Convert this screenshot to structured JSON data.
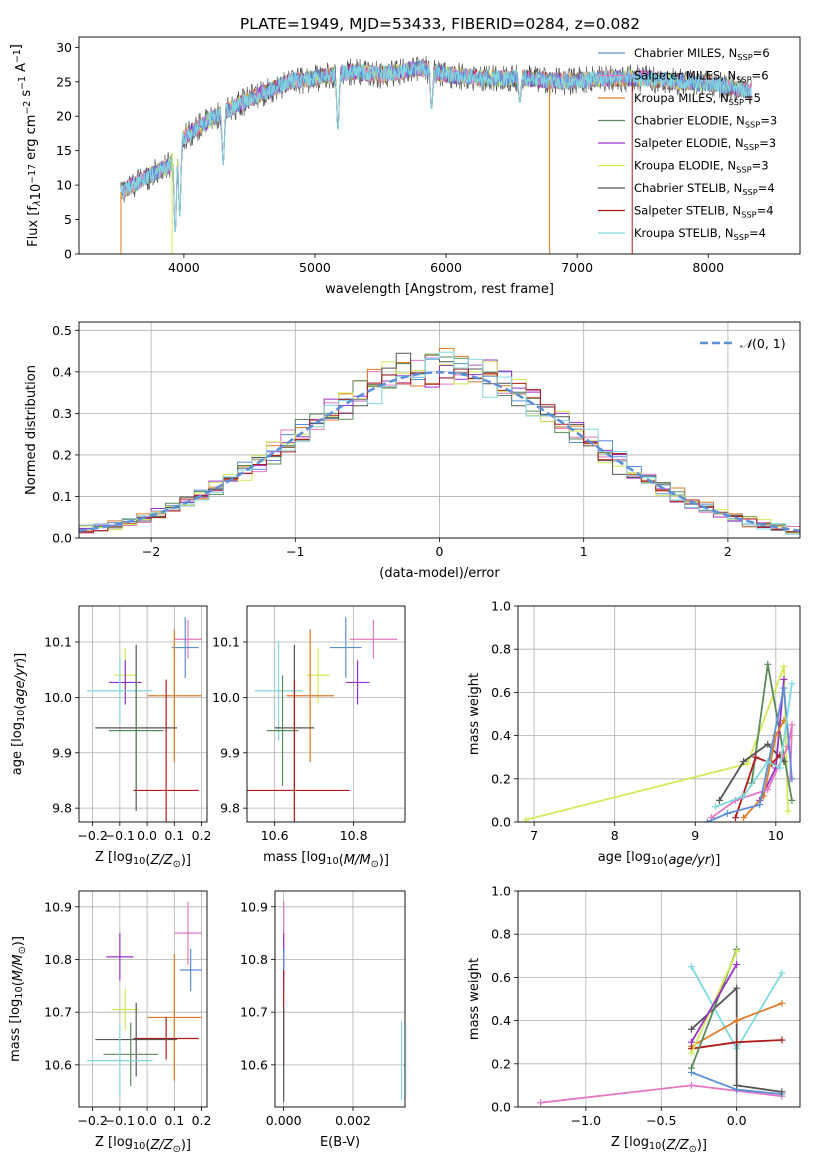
{
  "figure": {
    "title": "PLATE=1949, MJD=53433, FIBERID=0284, z=0.082"
  },
  "colors": {
    "chabrier_miles": "#5b8fd8",
    "salpeter_miles": "#e377c2",
    "kroupa_miles": "#e07b28",
    "chabrier_elodie": "#5a8a5a",
    "salpeter_elodie": "#9b30c9",
    "kroupa_elodie": "#d4e85a",
    "chabrier_stelib": "#555555",
    "salpeter_stelib": "#b01c1c",
    "kroupa_stelib": "#80d8e0",
    "grid": "#b0b0b0",
    "gauss": "#5b8fd8"
  },
  "chart_data": [
    {
      "id": "spectrum",
      "type": "line",
      "xlabel": "wavelength [Angstrom, rest frame]",
      "ylabel": "Flux [f_λ10^-17 erg cm^-2 s^-1 A^-1]",
      "xlim": [
        3200,
        8700
      ],
      "ylim": [
        0,
        31.5
      ],
      "xticks": [
        4000,
        5000,
        6000,
        7000,
        8000
      ],
      "yticks": [
        0,
        5,
        10,
        15,
        20,
        25,
        30
      ],
      "x_range": [
        3520,
        8330
      ],
      "continuum": {
        "x": [
          3520,
          3700,
          3900,
          4000,
          4200,
          4500,
          4800,
          5000,
          5300,
          5500,
          5800,
          6000,
          6300,
          6600,
          6900,
          7200,
          7500,
          7800,
          8100,
          8330
        ],
        "y": [
          9.0,
          11.0,
          13.0,
          17.0,
          19.5,
          22.5,
          25.0,
          25.5,
          26.5,
          26.0,
          27.0,
          26.0,
          25.5,
          25.5,
          25.0,
          25.5,
          25.5,
          25.0,
          24.5,
          23.5
        ]
      },
      "dips": [
        {
          "x": 3934,
          "y": 3.0
        },
        {
          "x": 3968,
          "y": 5.5
        },
        {
          "x": 4300,
          "y": 13.0
        },
        {
          "x": 5175,
          "y": 18.0
        },
        {
          "x": 5890,
          "y": 21.0
        },
        {
          "x": 6563,
          "y": 22.0
        }
      ],
      "drops": [
        {
          "x": 3520,
          "series": "kroupa_miles"
        },
        {
          "x": 3910,
          "series": "kroupa_elodie"
        },
        {
          "x": 6790,
          "series": "kroupa_miles"
        },
        {
          "x": 7420,
          "series": "salpeter_stelib"
        }
      ],
      "legend": [
        {
          "key": "chabrier_miles",
          "label": "Chabrier MILES, N",
          "sub": "SSP",
          "eq": "=6"
        },
        {
          "key": "salpeter_miles",
          "label": "Salpeter MILES, N",
          "sub": "SSP",
          "eq": "=6"
        },
        {
          "key": "kroupa_miles",
          "label": "Kroupa MILES, N",
          "sub": "SSP",
          "eq": "=5"
        },
        {
          "key": "chabrier_elodie",
          "label": "Chabrier ELODIE, N",
          "sub": "SSP",
          "eq": "=3"
        },
        {
          "key": "salpeter_elodie",
          "label": "Salpeter ELODIE, N",
          "sub": "SSP",
          "eq": "=3"
        },
        {
          "key": "kroupa_elodie",
          "label": "Kroupa ELODIE, N",
          "sub": "SSP",
          "eq": "=3"
        },
        {
          "key": "chabrier_stelib",
          "label": "Chabrier STELIB, N",
          "sub": "SSP",
          "eq": "=4"
        },
        {
          "key": "salpeter_stelib",
          "label": "Salpeter STELIB, N",
          "sub": "SSP",
          "eq": "=4"
        },
        {
          "key": "kroupa_stelib",
          "label": "Kroupa STELIB, N",
          "sub": "SSP",
          "eq": "=4"
        }
      ]
    },
    {
      "id": "residuals",
      "type": "histogram",
      "xlabel": "(data-model)/error",
      "ylabel": "Normed distribution",
      "xlim": [
        -2.5,
        2.5
      ],
      "ylim": [
        0,
        0.52
      ],
      "xticks": [
        -2,
        -1,
        0,
        1,
        2
      ],
      "yticks": [
        0.0,
        0.1,
        0.2,
        0.3,
        0.4,
        0.5
      ],
      "bins": 50,
      "legend": "N(0,1)",
      "series": [
        "chabrier_miles",
        "salpeter_miles",
        "kroupa_miles",
        "chabrier_elodie",
        "salpeter_elodie",
        "kroupa_elodie",
        "chabrier_stelib",
        "salpeter_stelib",
        "kroupa_stelib"
      ]
    },
    {
      "id": "age_vs_Z",
      "type": "errorbar",
      "xlabel": "Z [log10(Z/Z☉)]",
      "ylabel": "age  [log10(age/yr)]",
      "xlim": [
        -0.25,
        0.22
      ],
      "ylim": [
        9.775,
        10.165
      ],
      "xticks": [
        -0.2,
        -0.1,
        0.0,
        0.1,
        0.2
      ],
      "yticks": [
        9.8,
        9.9,
        10.0,
        10.1
      ],
      "points": [
        {
          "key": "salpeter_miles",
          "x": 0.15,
          "xerr": 0.05,
          "y": 10.105,
          "yerr": 0.035
        },
        {
          "key": "chabrier_miles",
          "x": 0.14,
          "xerr": 0.05,
          "y": 10.09,
          "yerr": 0.055
        },
        {
          "key": "kroupa_elodie",
          "x": -0.08,
          "xerr": 0.04,
          "y": 10.04,
          "yerr": 0.05
        },
        {
          "key": "salpeter_elodie",
          "x": -0.08,
          "xerr": 0.06,
          "y": 10.027,
          "yerr": 0.04
        },
        {
          "key": "kroupa_stelib",
          "x": -0.1,
          "xerr": 0.12,
          "y": 10.012,
          "yerr": 0.06
        },
        {
          "key": "kroupa_miles",
          "x": 0.1,
          "xerr": 0.1,
          "y": 10.003,
          "yerr": 0.12
        },
        {
          "key": "chabrier_stelib",
          "x": -0.04,
          "xerr": 0.15,
          "y": 9.945,
          "yerr": 0.15
        },
        {
          "key": "chabrier_elodie",
          "x": -0.04,
          "xerr": 0.1,
          "y": 9.94,
          "yerr": 0.1
        },
        {
          "key": "salpeter_stelib",
          "x": 0.07,
          "xerr": 0.12,
          "y": 9.832,
          "yerr": 0.2
        }
      ]
    },
    {
      "id": "age_vs_mass",
      "type": "errorbar",
      "xlabel": "mass [log10(M/M☉)]",
      "ylabel": "",
      "xlim": [
        10.53,
        10.93
      ],
      "ylim": [
        9.775,
        10.165
      ],
      "xticks": [
        10.6,
        10.8
      ],
      "yticks": [
        9.8,
        9.9,
        10.0,
        10.1
      ],
      "points": [
        {
          "key": "salpeter_miles",
          "x": 10.85,
          "xerr": 0.06,
          "y": 10.105,
          "yerr": 0.035
        },
        {
          "key": "chabrier_miles",
          "x": 10.78,
          "xerr": 0.04,
          "y": 10.09,
          "yerr": 0.055
        },
        {
          "key": "kroupa_elodie",
          "x": 10.71,
          "xerr": 0.03,
          "y": 10.04,
          "yerr": 0.05
        },
        {
          "key": "salpeter_elodie",
          "x": 10.81,
          "xerr": 0.03,
          "y": 10.027,
          "yerr": 0.04
        },
        {
          "key": "kroupa_stelib",
          "x": 10.61,
          "xerr": 0.06,
          "y": 10.012,
          "yerr": 0.09
        },
        {
          "key": "kroupa_miles",
          "x": 10.69,
          "xerr": 0.06,
          "y": 10.003,
          "yerr": 0.12
        },
        {
          "key": "chabrier_stelib",
          "x": 10.65,
          "xerr": 0.05,
          "y": 9.945,
          "yerr": 0.15
        },
        {
          "key": "chabrier_elodie",
          "x": 10.62,
          "xerr": 0.04,
          "y": 9.94,
          "yerr": 0.1
        },
        {
          "key": "salpeter_stelib",
          "x": 10.65,
          "xerr": 0.14,
          "y": 9.832,
          "yerr": 0.2
        }
      ]
    },
    {
      "id": "weight_vs_age",
      "type": "line",
      "xlabel": "age  [log10(age/yr)]",
      "ylabel": "mass weight",
      "xlim": [
        6.8,
        10.3
      ],
      "ylim": [
        0,
        1
      ],
      "xticks": [
        7,
        8,
        9,
        10
      ],
      "yticks": [
        0.0,
        0.2,
        0.4,
        0.6,
        0.8,
        1.0
      ],
      "series": [
        {
          "key": "kroupa_elodie",
          "x": [
            6.9,
            9.65,
            10.1,
            10.15
          ],
          "y": [
            0.01,
            0.27,
            0.72,
            0.05
          ]
        },
        {
          "key": "chabrier_elodie",
          "x": [
            9.7,
            9.9,
            10.2
          ],
          "y": [
            0.18,
            0.73,
            0.1
          ]
        },
        {
          "key": "chabrier_stelib",
          "x": [
            9.3,
            9.6,
            9.9,
            10.1
          ],
          "y": [
            0.1,
            0.28,
            0.36,
            0.28
          ]
        },
        {
          "key": "salpeter_elodie",
          "x": [
            9.8,
            10.0,
            10.1
          ],
          "y": [
            0.1,
            0.25,
            0.66
          ]
        },
        {
          "key": "salpeter_stelib",
          "x": [
            9.5,
            9.75,
            9.95,
            10.05
          ],
          "y": [
            0.02,
            0.3,
            0.27,
            0.31
          ]
        },
        {
          "key": "kroupa_miles",
          "x": [
            9.6,
            9.85,
            10.0,
            10.1
          ],
          "y": [
            0.02,
            0.12,
            0.4,
            0.47
          ]
        },
        {
          "key": "salpeter_miles",
          "x": [
            9.2,
            9.5,
            9.9,
            10.15,
            10.2,
            10.18
          ],
          "y": [
            0.02,
            0.1,
            0.15,
            0.35,
            0.45,
            0.2
          ]
        },
        {
          "key": "chabrier_miles",
          "x": [
            9.15,
            9.4,
            9.8,
            10.1,
            10.2
          ],
          "y": [
            0.0,
            0.04,
            0.08,
            0.62,
            0.2
          ]
        },
        {
          "key": "kroupa_stelib",
          "x": [
            9.25,
            9.6,
            9.9,
            10.05,
            10.2
          ],
          "y": [
            0.07,
            0.12,
            0.28,
            0.25,
            0.64
          ]
        }
      ]
    },
    {
      "id": "mass_vs_Z",
      "type": "errorbar",
      "xlabel": "Z [log10(Z/Z☉)]",
      "ylabel": "mass [log10(M/M☉)]",
      "xlim": [
        -0.25,
        0.22
      ],
      "ylim": [
        10.52,
        10.93
      ],
      "xticks": [
        -0.2,
        -0.1,
        0.0,
        0.1,
        0.2
      ],
      "yticks": [
        10.6,
        10.7,
        10.8,
        10.9
      ],
      "points": [
        {
          "key": "salpeter_miles",
          "x": 0.15,
          "xerr": 0.05,
          "y": 10.85,
          "yerr": 0.06
        },
        {
          "key": "salpeter_elodie",
          "x": -0.1,
          "xerr": 0.05,
          "y": 10.805,
          "yerr": 0.045
        },
        {
          "key": "chabrier_miles",
          "x": 0.16,
          "xerr": 0.04,
          "y": 10.78,
          "yerr": 0.04
        },
        {
          "key": "kroupa_elodie",
          "x": -0.08,
          "xerr": 0.05,
          "y": 10.705,
          "yerr": 0.04
        },
        {
          "key": "kroupa_miles",
          "x": 0.1,
          "xerr": 0.1,
          "y": 10.69,
          "yerr": 0.12
        },
        {
          "key": "salpeter_stelib",
          "x": 0.07,
          "xerr": 0.12,
          "y": 10.65,
          "yerr": 0.04
        },
        {
          "key": "chabrier_stelib",
          "x": -0.04,
          "xerr": 0.15,
          "y": 10.648,
          "yerr": 0.07
        },
        {
          "key": "chabrier_elodie",
          "x": -0.06,
          "xerr": 0.1,
          "y": 10.62,
          "yerr": 0.06
        },
        {
          "key": "kroupa_stelib",
          "x": -0.1,
          "xerr": 0.12,
          "y": 10.608,
          "yerr": 0.07
        }
      ]
    },
    {
      "id": "mass_vs_ebv",
      "type": "errorbar",
      "xlabel": "E(B-V)",
      "ylabel": "",
      "xlim": [
        -0.00025,
        0.0035
      ],
      "ylim": [
        10.52,
        10.93
      ],
      "xticks": [
        0.0,
        0.002
      ],
      "xtick_labels": [
        "0.000",
        "0.002"
      ],
      "yticks": [
        10.6,
        10.7,
        10.8,
        10.9
      ],
      "points": [
        {
          "key": "salpeter_miles",
          "x": 0.0,
          "xerr": 0,
          "y": 10.85,
          "yerr": 0.06
        },
        {
          "key": "salpeter_elodie",
          "x": 0.0,
          "xerr": 0,
          "y": 10.805,
          "yerr": 0.045
        },
        {
          "key": "chabrier_miles",
          "x": 0.0,
          "xerr": 0,
          "y": 10.78,
          "yerr": 0.04
        },
        {
          "key": "salpeter_stelib",
          "x": 0.0,
          "xerr": 0,
          "y": 10.69,
          "yerr": 0.09
        },
        {
          "key": "chabrier_stelib",
          "x": 0.0,
          "xerr": 0,
          "y": 10.62,
          "yerr": 0.09
        },
        {
          "key": "kroupa_stelib",
          "x": 0.0034,
          "xerr": 0,
          "y": 10.608,
          "yerr": 0.075
        }
      ]
    },
    {
      "id": "weight_vs_Z",
      "type": "line",
      "xlabel": "Z [log10(Z/Z☉)]",
      "ylabel": "mass weight",
      "xlim": [
        -1.45,
        0.42
      ],
      "ylim": [
        0,
        1
      ],
      "xticks": [
        -1.0,
        -0.5,
        0.0
      ],
      "yticks": [
        0.0,
        0.2,
        0.4,
        0.6,
        0.8,
        1.0
      ],
      "series": [
        {
          "key": "salpeter_miles",
          "x": [
            -1.3,
            -0.3,
            0.3
          ],
          "y": [
            0.02,
            0.1,
            0.05
          ]
        },
        {
          "key": "kroupa_stelib",
          "x": [
            -0.3,
            0.0,
            0.3
          ],
          "y": [
            0.65,
            0.27,
            0.62
          ]
        },
        {
          "key": "chabrier_miles",
          "x": [
            -0.3,
            0.0,
            0.3
          ],
          "y": [
            0.16,
            0.08,
            0.06
          ]
        },
        {
          "key": "chabrier_stelib",
          "x": [
            -0.3,
            0.0,
            0.0,
            0.3
          ],
          "y": [
            0.36,
            0.55,
            0.1,
            0.07
          ]
        },
        {
          "key": "kroupa_miles",
          "x": [
            -0.3,
            0.0,
            0.3
          ],
          "y": [
            0.28,
            0.4,
            0.48
          ]
        },
        {
          "key": "salpeter_stelib",
          "x": [
            -0.3,
            0.0,
            0.3
          ],
          "y": [
            0.27,
            0.3,
            0.31
          ]
        },
        {
          "key": "chabrier_elodie",
          "x": [
            -0.3,
            0.0
          ],
          "y": [
            0.18,
            0.73
          ]
        },
        {
          "key": "kroupa_elodie",
          "x": [
            -0.3,
            0.0
          ],
          "y": [
            0.25,
            0.72
          ]
        },
        {
          "key": "salpeter_elodie",
          "x": [
            -0.3,
            0.0
          ],
          "y": [
            0.3,
            0.66
          ]
        }
      ]
    }
  ]
}
